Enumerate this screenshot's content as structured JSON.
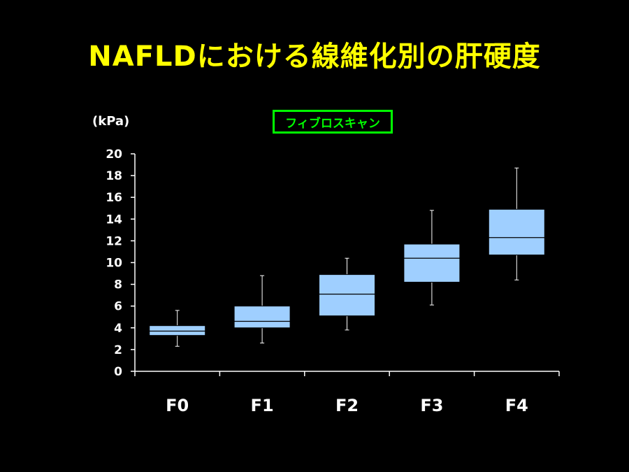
{
  "title": "NAFLDにおける線維化別の肝硬度",
  "chart_data": {
    "type": "boxplot",
    "method_label": "フィブロスキャン",
    "ylabel": "(kPa)",
    "ylim": [
      0,
      20
    ],
    "yticks": [
      0,
      2,
      4,
      6,
      8,
      10,
      12,
      14,
      16,
      18,
      20
    ],
    "categories": [
      "F0",
      "F1",
      "F2",
      "F3",
      "F4"
    ],
    "boxes": [
      {
        "label": "F0",
        "min": 2.3,
        "q1": 3.3,
        "median": 3.7,
        "q3": 4.2,
        "max": 5.6
      },
      {
        "label": "F1",
        "min": 2.6,
        "q1": 4.0,
        "median": 4.6,
        "q3": 6.0,
        "max": 8.8
      },
      {
        "label": "F2",
        "min": 3.8,
        "q1": 5.1,
        "median": 7.1,
        "q3": 8.9,
        "max": 10.4
      },
      {
        "label": "F3",
        "min": 6.1,
        "q1": 8.2,
        "median": 10.4,
        "q3": 11.7,
        "max": 14.8
      },
      {
        "label": "F4",
        "min": 8.4,
        "q1": 10.7,
        "median": 12.3,
        "q3": 14.9,
        "max": 18.7
      }
    ],
    "colors": {
      "box_fill": "#9fcfff",
      "axis": "#ffffff",
      "title": "#ffff00",
      "legend": "#00ff00"
    }
  }
}
